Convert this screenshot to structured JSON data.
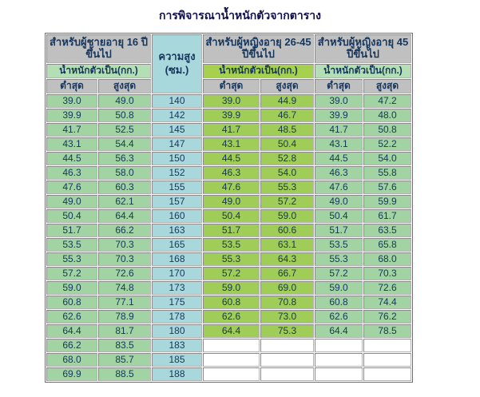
{
  "title": "การพิจารณาน้ำหนักตัวจากตาราง",
  "colors": {
    "header_gray": "#c0c0c0",
    "weight_label_green": "#b4dfb4",
    "weight_label_yellow_green": "#a6d14f",
    "cell_green": "#a2d3a2",
    "cell_yellow_green": "#a0cd58",
    "cell_blue": "#a9d8dc",
    "empty_cell": "#ffffff",
    "text_navy": "#17365d",
    "border_gray": "#8a8a8a"
  },
  "table": {
    "header": {
      "men_group": "สำหรับผู้ชายอายุ 16 ปีขึ้นไป",
      "women_26_45_group": "สำหรับผู้หญิงอายุ 26-45 ปีขึ้นไป",
      "women_45_group": "สำหรับผู้หญิงอายุ 45 ปีขึ้นไป",
      "height_label": "ความสูง",
      "height_unit": "(ซม.)",
      "weight_label": "น้ำหนักตัวเป็น(กก.)",
      "min_label": "ต่ำสุด",
      "max_label": "สูงสุด"
    },
    "rows": [
      {
        "height": "140",
        "men": [
          "39.0",
          "49.0"
        ],
        "women_26_45": [
          "39.0",
          "44.9"
        ],
        "women_45": [
          "39.0",
          "47.2"
        ]
      },
      {
        "height": "142",
        "men": [
          "39.9",
          "50.8"
        ],
        "women_26_45": [
          "39.9",
          "46.7"
        ],
        "women_45": [
          "39.9",
          "48.0"
        ]
      },
      {
        "height": "145",
        "men": [
          "41.7",
          "52.5"
        ],
        "women_26_45": [
          "41.7",
          "48.5"
        ],
        "women_45": [
          "41.7",
          "50.8"
        ]
      },
      {
        "height": "147",
        "men": [
          "43.1",
          "54.4"
        ],
        "women_26_45": [
          "43.1",
          "50.4"
        ],
        "women_45": [
          "43.1",
          "52.2"
        ]
      },
      {
        "height": "150",
        "men": [
          "44.5",
          "56.3"
        ],
        "women_26_45": [
          "44.5",
          "52.8"
        ],
        "women_45": [
          "44.5",
          "54.0"
        ]
      },
      {
        "height": "152",
        "men": [
          "46.3",
          "58.0"
        ],
        "women_26_45": [
          "46.3",
          "54.0"
        ],
        "women_45": [
          "46.3",
          "55.8"
        ]
      },
      {
        "height": "155",
        "men": [
          "47.6",
          "60.3"
        ],
        "women_26_45": [
          "47.6",
          "55.3"
        ],
        "women_45": [
          "47.6",
          "57.6"
        ]
      },
      {
        "height": "157",
        "men": [
          "49.0",
          "62.1"
        ],
        "women_26_45": [
          "49.0",
          "57.2"
        ],
        "women_45": [
          "49.0",
          "59.9"
        ]
      },
      {
        "height": "160",
        "men": [
          "50.4",
          "64.4"
        ],
        "women_26_45": [
          "50.4",
          "59.0"
        ],
        "women_45": [
          "50.4",
          "61.7"
        ]
      },
      {
        "height": "163",
        "men": [
          "51.7",
          "66.2"
        ],
        "women_26_45": [
          "51.7",
          "60.6"
        ],
        "women_45": [
          "51.7",
          "63.5"
        ]
      },
      {
        "height": "165",
        "men": [
          "53.5",
          "70.3"
        ],
        "women_26_45": [
          "53.5",
          "63.1"
        ],
        "women_45": [
          "53.5",
          "65.8"
        ]
      },
      {
        "height": "168",
        "men": [
          "55.3",
          "70.3"
        ],
        "women_26_45": [
          "55.3",
          "64.3"
        ],
        "women_45": [
          "55.3",
          "68.0"
        ]
      },
      {
        "height": "170",
        "men": [
          "57.2",
          "72.6"
        ],
        "women_26_45": [
          "57.2",
          "66.7"
        ],
        "women_45": [
          "57.2",
          "70.3"
        ]
      },
      {
        "height": "173",
        "men": [
          "59.0",
          "74.8"
        ],
        "women_26_45": [
          "59.0",
          "69.0"
        ],
        "women_45": [
          "59.0",
          "72.6"
        ]
      },
      {
        "height": "175",
        "men": [
          "60.8",
          "77.1"
        ],
        "women_26_45": [
          "60.8",
          "70.8"
        ],
        "women_45": [
          "60.8",
          "74.4"
        ]
      },
      {
        "height": "178",
        "men": [
          "62.6",
          "78.9"
        ],
        "women_26_45": [
          "62.6",
          "73.0"
        ],
        "women_45": [
          "62.6",
          "76.2"
        ]
      },
      {
        "height": "180",
        "men": [
          "64.4",
          "81.7"
        ],
        "women_26_45": [
          "64.4",
          "75.3"
        ],
        "women_45": [
          "64.4",
          "78.5"
        ]
      },
      {
        "height": "183",
        "men": [
          "66.2",
          "83.5"
        ],
        "women_26_45": [],
        "women_45": []
      },
      {
        "height": "185",
        "men": [
          "68.0",
          "85.7"
        ],
        "women_26_45": [],
        "women_45": []
      },
      {
        "height": "188",
        "men": [
          "69.9",
          "88.5"
        ],
        "women_26_45": [],
        "women_45": []
      }
    ]
  }
}
